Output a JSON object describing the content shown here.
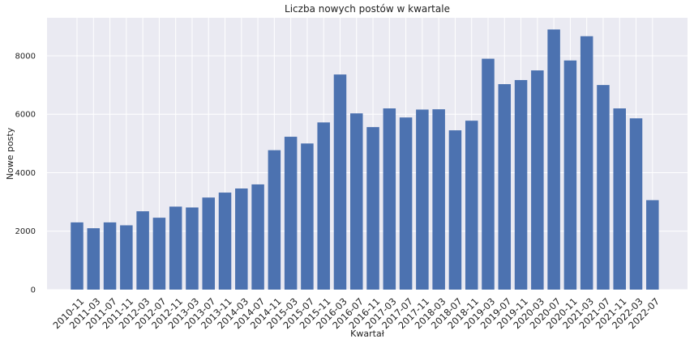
{
  "chart_data": {
    "type": "bar",
    "title": "Liczba nowych postów w kwartale",
    "xlabel": "Kwartał",
    "ylabel": "Nowe posty",
    "ylim": [
      0,
      9300
    ],
    "yticks": [
      0,
      2000,
      4000,
      6000,
      8000
    ],
    "grid": true,
    "background": "#eaeaf2",
    "bar_color": "#4c72b0",
    "categories": [
      "2010-11",
      "2011-03",
      "2011-07",
      "2011-11",
      "2012-03",
      "2012-07",
      "2012-11",
      "2013-03",
      "2013-07",
      "2013-11",
      "2014-03",
      "2014-07",
      "2014-11",
      "2015-03",
      "2015-07",
      "2015-11",
      "2016-03",
      "2016-07",
      "2016-11",
      "2017-03",
      "2017-07",
      "2017-11",
      "2018-03",
      "2018-07",
      "2018-11",
      "2019-03",
      "2019-07",
      "2019-11",
      "2020-03",
      "2020-07",
      "2020-11",
      "2021-03",
      "2021-07",
      "2021-11",
      "2022-03",
      "2022-07"
    ],
    "values": [
      2300,
      2100,
      2300,
      2200,
      2680,
      2460,
      2840,
      2810,
      3150,
      3320,
      3460,
      3600,
      4770,
      5230,
      5000,
      5720,
      7360,
      6030,
      5560,
      6200,
      5890,
      6160,
      6170,
      5450,
      5780,
      7900,
      7030,
      7170,
      7500,
      8900,
      7840,
      8670,
      7000,
      6200,
      5860,
      3060
    ]
  }
}
